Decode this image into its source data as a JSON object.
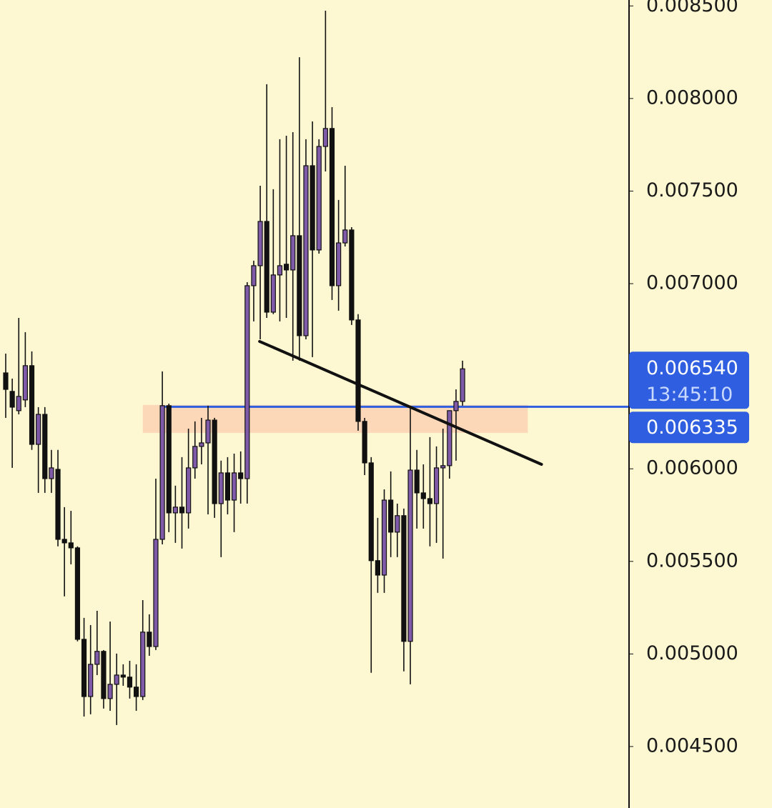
{
  "chart_data": {
    "type": "candlestick",
    "ylim": [
      0.004168,
      0.008532
    ],
    "yticks": [
      {
        "value": 0.0085,
        "label": "0.008500"
      },
      {
        "value": 0.008,
        "label": "0.008000"
      },
      {
        "value": 0.0075,
        "label": "0.007500"
      },
      {
        "value": 0.007,
        "label": "0.007000"
      },
      {
        "value": 0.006,
        "label": "0.006000"
      },
      {
        "value": 0.0055,
        "label": "0.005500"
      },
      {
        "value": 0.005,
        "label": "0.005000"
      },
      {
        "value": 0.0045,
        "label": "0.004500"
      }
    ],
    "up_color": "#7e5aa8",
    "down_color": "#111111",
    "open": [
      0.006518,
      0.006418,
      0.006314,
      0.006372,
      0.006557,
      0.006132,
      0.006294,
      0.005947,
      0.005997,
      0.005619,
      0.0056,
      0.005573,
      0.005079,
      0.00477,
      0.004944,
      0.005014,
      0.004759,
      0.004836,
      0.004886,
      0.004875,
      0.004821,
      0.00477,
      0.005118,
      0.00504,
      0.005619,
      0.006341,
      0.005762,
      0.005793,
      0.005762,
      0.006005,
      0.006121,
      0.00614,
      0.006263,
      0.005812,
      0.005978,
      0.005831,
      0.005978,
      0.005947,
      0.006989,
      0.007097,
      0.007336,
      0.006846,
      0.007047,
      0.007105,
      0.007074,
      0.007259,
      0.006719,
      0.007637,
      0.007182,
      0.007741,
      0.007838,
      0.006989,
      0.00722,
      0.00729,
      0.006804,
      0.006256,
      0.006032,
      0.005504,
      0.005426,
      0.005831,
      0.005658,
      0.005747,
      0.005068,
      0.005993,
      0.00587,
      0.005839,
      0.005812,
      0.006005,
      0.006017,
      0.006314,
      0.006364
    ],
    "high": [
      0.006622,
      0.006487,
      0.006815,
      0.006738,
      0.006634,
      0.006333,
      0.006333,
      0.006102,
      0.006102,
      0.005793,
      0.005773,
      0.005581,
      0.005195,
      0.005156,
      0.005233,
      0.005021,
      0.005175,
      0.005002,
      0.004944,
      0.004963,
      0.004944,
      0.005291,
      0.005214,
      0.005947,
      0.006526,
      0.006352,
      0.005909,
      0.006063,
      0.006217,
      0.006256,
      0.006275,
      0.006341,
      0.006275,
      0.006044,
      0.006063,
      0.006082,
      0.006094,
      0.007008,
      0.007124,
      0.007529,
      0.008077,
      0.00751,
      0.00778,
      0.007799,
      0.007818,
      0.008223,
      0.00778,
      0.007876,
      0.00778,
      0.008474,
      0.007953,
      0.007452,
      0.007637,
      0.007305,
      0.006835,
      0.006275,
      0.006063,
      0.005735,
      0.005889,
      0.005986,
      0.005812,
      0.005785,
      0.006333,
      0.006102,
      0.006024,
      0.006171,
      0.006121,
      0.006217,
      0.006314,
      0.006429,
      0.006584
    ],
    "low": [
      0.006275,
      0.006005,
      0.006294,
      0.006333,
      0.006102,
      0.00587,
      0.00587,
      0.00587,
      0.005581,
      0.005311,
      0.005484,
      0.005068,
      0.004662,
      0.004674,
      0.004886,
      0.004705,
      0.004693,
      0.004616,
      0.004828,
      0.004759,
      0.004693,
      0.004751,
      0.00499,
      0.005021,
      0.005592,
      0.005658,
      0.0056,
      0.005569,
      0.005677,
      0.005947,
      0.006024,
      0.005754,
      0.005735,
      0.005523,
      0.005754,
      0.005658,
      0.005812,
      0.005812,
      0.006796,
      0.006699,
      0.006815,
      0.006835,
      0.006796,
      0.006815,
      0.006584,
      0.006584,
      0.006699,
      0.006603,
      0.007162,
      0.007606,
      0.006912,
      0.006854,
      0.007201,
      0.006777,
      0.006206,
      0.005966,
      0.004898,
      0.00533,
      0.00533,
      0.005523,
      0.005523,
      0.004906,
      0.004836,
      0.005677,
      0.005677,
      0.005581,
      0.0056,
      0.005515,
      0.005947,
      0.006044,
      0.006341
    ],
    "close": [
      0.006429,
      0.006333,
      0.006391,
      0.006557,
      0.006132,
      0.006294,
      0.005947,
      0.006005,
      0.005619,
      0.0056,
      0.005573,
      0.005079,
      0.00477,
      0.004944,
      0.005014,
      0.004759,
      0.004836,
      0.004886,
      0.004875,
      0.004821,
      0.00477,
      0.005118,
      0.00504,
      0.005619,
      0.006341,
      0.005762,
      0.005793,
      0.005762,
      0.006005,
      0.006121,
      0.00614,
      0.006263,
      0.005812,
      0.005978,
      0.005831,
      0.005978,
      0.005947,
      0.006989,
      0.007097,
      0.007336,
      0.006846,
      0.007047,
      0.007097,
      0.007074,
      0.007259,
      0.006719,
      0.007637,
      0.007182,
      0.007741,
      0.007838,
      0.006989,
      0.00722,
      0.00729,
      0.006804,
      0.006256,
      0.006032,
      0.005504,
      0.005426,
      0.005831,
      0.005658,
      0.005747,
      0.005068,
      0.005993,
      0.00587,
      0.005839,
      0.005812,
      0.006005,
      0.006017,
      0.006314,
      0.006364,
      0.00654
    ],
    "zone": {
      "x": [
        21,
        80
      ],
      "y": [
        0.006194,
        0.006345
      ],
      "color": "#fcd2b4"
    },
    "trendline": {
      "x": [
        38.9,
        82.1
      ],
      "y": [
        0.006688,
        0.006024
      ],
      "color": "#111111"
    },
    "price_line": {
      "value": 0.006335,
      "label": "0.006335",
      "color": "#2f5fe0"
    },
    "last_price": {
      "value": 0.00654,
      "label": "0.006540",
      "countdown": "13:45:10",
      "color": "#2f5fe0"
    }
  }
}
